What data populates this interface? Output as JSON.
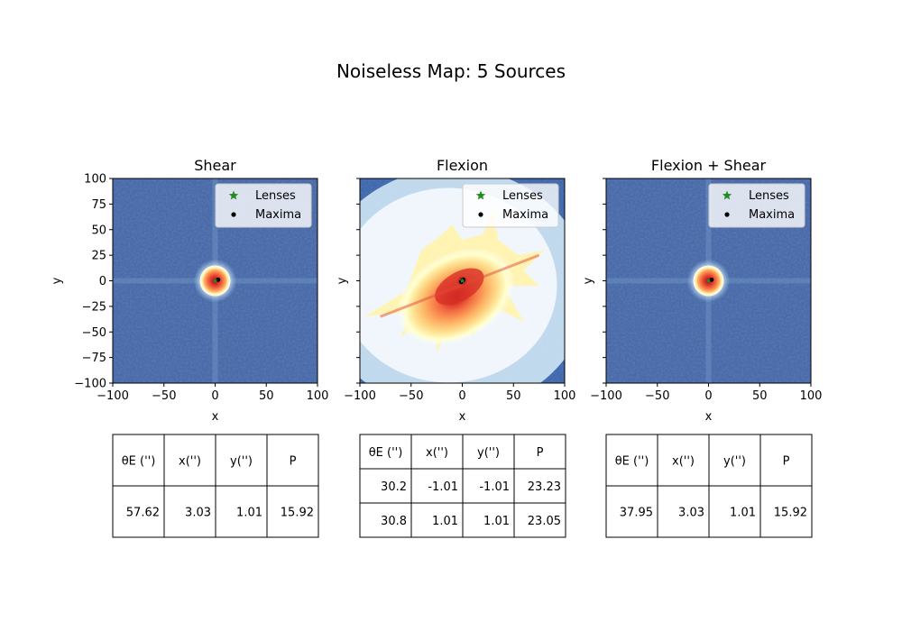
{
  "figure": {
    "title": "Noiseless Map: 5 Sources"
  },
  "chart_data": [
    {
      "type": "heatmap",
      "title": "Shear",
      "xlabel": "x",
      "ylabel": "y",
      "xlim": [
        -100,
        100
      ],
      "ylim": [
        -100,
        100
      ],
      "xticks": [
        "−100",
        "−50",
        "0",
        "50",
        "100"
      ],
      "yticks": [
        "100",
        "75",
        "50",
        "25",
        "0",
        "−25",
        "−50",
        "−75",
        "−100"
      ],
      "show_yticklabels": true,
      "map_style": "compact",
      "peak": {
        "x": 0,
        "y": 0
      },
      "legend": {
        "position": "top-right",
        "entries": [
          "Lenses",
          "Maxima"
        ]
      },
      "lenses": [
        [
          0,
          0
        ]
      ],
      "maxima": [
        [
          3.03,
          1.01
        ]
      ],
      "table": {
        "columns": [
          "θE ('')",
          "x('')",
          "y('')",
          "P"
        ],
        "rows": [
          [
            "57.62",
            "3.03",
            "1.01",
            "15.92"
          ]
        ]
      }
    },
    {
      "type": "heatmap",
      "title": "Flexion",
      "xlabel": "x",
      "ylabel": "y",
      "xlim": [
        -100,
        100
      ],
      "ylim": [
        -100,
        100
      ],
      "xticks": [
        "−100",
        "−50",
        "0",
        "50",
        "100"
      ],
      "yticks": [
        "100",
        "75",
        "50",
        "25",
        "0",
        "−25",
        "−50",
        "−75",
        "−100"
      ],
      "show_yticklabels": false,
      "map_style": "diffuse",
      "peak": {
        "x": 0,
        "y": 0
      },
      "legend": {
        "position": "top-right",
        "entries": [
          "Lenses",
          "Maxima"
        ]
      },
      "lenses": [
        [
          0,
          0
        ]
      ],
      "maxima": [
        [
          -1.01,
          -1.01
        ],
        [
          1.01,
          1.01
        ]
      ],
      "table": {
        "columns": [
          "θE ('')",
          "x('')",
          "y('')",
          "P"
        ],
        "rows": [
          [
            "30.2",
            "-1.01",
            "-1.01",
            "23.23"
          ],
          [
            "30.8",
            "1.01",
            "1.01",
            "23.05"
          ]
        ]
      }
    },
    {
      "type": "heatmap",
      "title": "Flexion + Shear",
      "xlabel": "x",
      "ylabel": "y",
      "xlim": [
        -100,
        100
      ],
      "ylim": [
        -100,
        100
      ],
      "xticks": [
        "−100",
        "−50",
        "0",
        "50",
        "100"
      ],
      "yticks": [
        "100",
        "75",
        "50",
        "25",
        "0",
        "−25",
        "−50",
        "−75",
        "−100"
      ],
      "show_yticklabels": false,
      "map_style": "compact",
      "peak": {
        "x": 0,
        "y": 0
      },
      "legend": {
        "position": "top-right",
        "entries": [
          "Lenses",
          "Maxima"
        ]
      },
      "lenses": [
        [
          0,
          0
        ]
      ],
      "maxima": [
        [
          3.03,
          1.01
        ]
      ],
      "table": {
        "columns": [
          "θE ('')",
          "x('')",
          "y('')",
          "P"
        ],
        "rows": [
          [
            "37.95",
            "3.03",
            "1.01",
            "15.92"
          ]
        ]
      }
    }
  ],
  "colors": {
    "lens_marker": "#228b22",
    "maxima_marker": "#000000",
    "map_background": "#4a6aa8"
  }
}
